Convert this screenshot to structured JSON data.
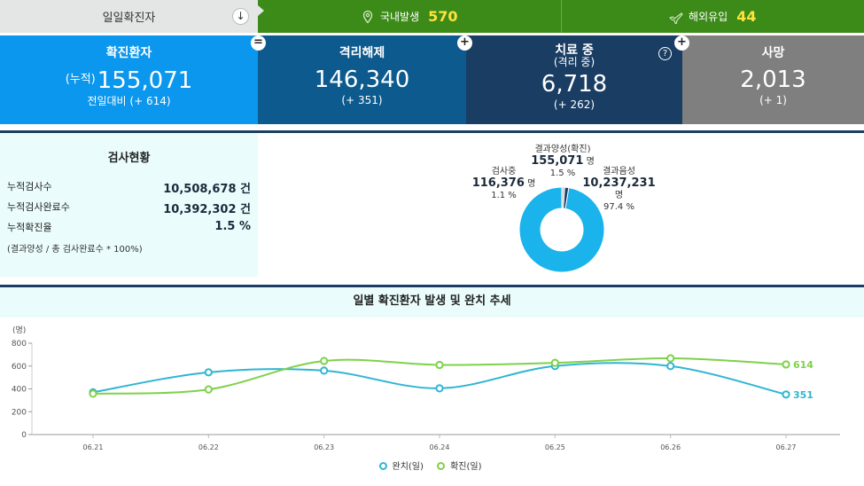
{
  "topbar": {
    "daily_label": "일일확진자",
    "down_icon": "↓",
    "domestic_label": "국내발생",
    "domestic_value": "570",
    "imported_label": "해외유입",
    "imported_value": "44"
  },
  "stats": {
    "confirmed": {
      "label": "확진환자",
      "prefix": "(누적)",
      "value": "155,071",
      "sub": "전일대비 (+ 614)"
    },
    "released": {
      "label": "격리해제",
      "value": "146,340",
      "sub": "(+ 351)"
    },
    "treating": {
      "label": "치료 중",
      "label2": "(격리 중)",
      "value": "6,718",
      "sub": "(+ 262)",
      "help": "?"
    },
    "deaths": {
      "label": "사망",
      "value": "2,013",
      "sub": "(+ 1)"
    },
    "op_eq": "=",
    "op_plus": "+"
  },
  "tests": {
    "title": "검사현황",
    "rows": [
      {
        "label": "누적검사수",
        "value": "10,508,678 건"
      },
      {
        "label": "누적검사완료수",
        "value": "10,392,302 건"
      },
      {
        "label": "누적확진율",
        "value": "1.5 %"
      }
    ],
    "note": "(결과양성 / 총 검사완료수 * 100%)"
  },
  "donut": {
    "positive": {
      "label": "결과양성(확진)",
      "value": "155,071",
      "unit": "명",
      "pct": "1.5 %",
      "share": 0.015
    },
    "testing": {
      "label": "검사중",
      "value": "116,376",
      "unit": "명",
      "pct": "1.1 %",
      "share": 0.011
    },
    "negative": {
      "label": "결과음성",
      "value": "10,237,231",
      "unit": "명",
      "pct": "97.4 %",
      "share": 0.974
    },
    "colors": {
      "negative": "#1ab3ec",
      "testing": "#c9c9c9",
      "positive": "#1b3d63"
    }
  },
  "trend": {
    "title": "일별 확진환자 발생 및 완치 추세",
    "legend_released": "완치(일)",
    "legend_confirmed": "확진(일)"
  },
  "chart_data": {
    "type": "line",
    "categories": [
      "06.21",
      "06.22",
      "06.23",
      "06.24",
      "06.25",
      "06.26",
      "06.27"
    ],
    "series": [
      {
        "name": "완치(일)",
        "color": "#2fb5d3",
        "values": [
          370,
          545,
          560,
          405,
          600,
          600,
          351
        ]
      },
      {
        "name": "확진(일)",
        "color": "#7fd14a",
        "values": [
          358,
          395,
          645,
          610,
          628,
          668,
          614
        ]
      }
    ],
    "end_labels": [
      "351",
      "614"
    ],
    "ylabel": "(명)",
    "ylim": [
      0,
      800
    ],
    "yticks": [
      0,
      200,
      400,
      600,
      800
    ],
    "grid": false,
    "legend": "bottom-center"
  }
}
